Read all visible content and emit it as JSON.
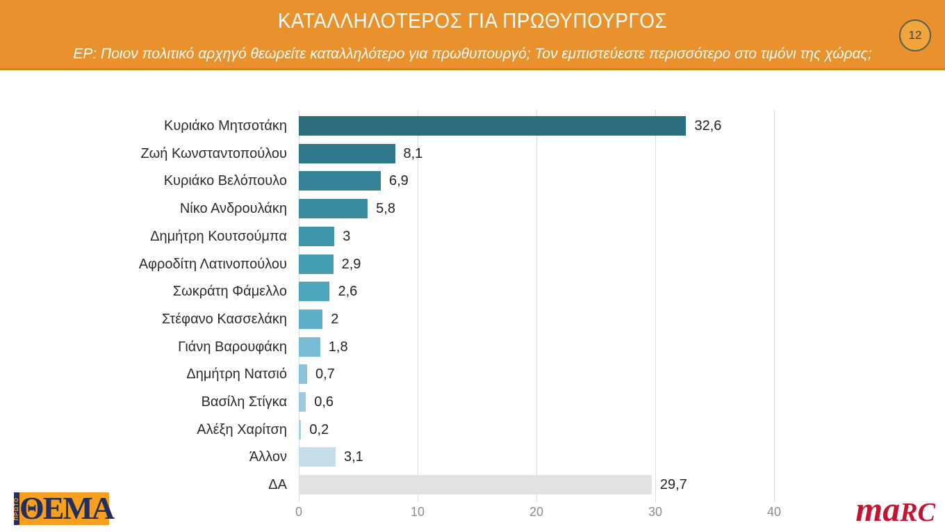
{
  "header": {
    "title": "ΚΑΤΑΛΛΗΛΟΤΕΡΟΣ ΓΙΑ ΠΡΩΘΥΠΟΥΡΓΟΣ",
    "subtitle": "ΕΡ: Ποιον πολιτικό αρχηγό θεωρείτε καταλληλότερο για πρωθυπουργό; Τον εμπιστεύεστε περισσότερο στο τιμόνι της χώρας;",
    "page_number": "12"
  },
  "colors": {
    "header_bg": "#E8912D",
    "header_border": "#D8821C",
    "badge_fill": "#F0A63C",
    "badge_border": "#55604E",
    "grid": "#DBDBDB",
    "tick_text": "#8C8C8C",
    "label_text": "#2B2B2B",
    "value_text": "#222222"
  },
  "chart_data": {
    "type": "bar",
    "orientation": "horizontal",
    "title": "ΚΑΤΑΛΛΗΛΟΤΕΡΟΣ ΓΙΑ ΠΡΩΘΥΠΟΥΡΓΟΣ",
    "categories": [
      "Κυριάκο Μητσοτάκη",
      "Ζωή Κωνσταντοπούλου",
      "Κυριάκο Βελόπουλο",
      "Νίκο Ανδρουλάκη",
      "Δημήτρη Κουτσούμπα",
      "Αφροδίτη Λατινοπούλου",
      "Σωκράτη Φάμελλο",
      "Στέφανο Κασσελάκη",
      "Γιάνη Βαρουφάκη",
      "Δημήτρη Νατσιό",
      "Βασίλη Στίγκα",
      "Αλέξη Χαρίτση",
      "Άλλον",
      "ΔΑ"
    ],
    "values": [
      32.6,
      8.1,
      6.9,
      5.8,
      3,
      2.9,
      2.6,
      2,
      1.8,
      0.7,
      0.6,
      0.2,
      3.1,
      29.7
    ],
    "value_labels": [
      "32,6",
      "8,1",
      "6,9",
      "5,8",
      "3",
      "2,9",
      "2,6",
      "2",
      "1,8",
      "0,7",
      "0,6",
      "0,2",
      "3,1",
      "29,7"
    ],
    "bar_colors": [
      "#2C6D7E",
      "#30778A",
      "#358195",
      "#3A8B9F",
      "#3F95A9",
      "#449EB2",
      "#4BA6BD",
      "#5DAEC9",
      "#79BBD4",
      "#8EC4DB",
      "#9BCADF",
      "#A9D1E4",
      "#C5DEEA",
      "#E2E2E2"
    ],
    "x_ticks": [
      0,
      10,
      20,
      30,
      40
    ],
    "xlim": [
      0,
      40
    ],
    "xlabel": "",
    "ylabel": "",
    "grid": true,
    "legend": false
  },
  "footer": {
    "left_logo_prefix": "ΠΡΩΤΟ",
    "left_logo_text": "ΘΕΜΑ",
    "right_logo_text_lower": "ma",
    "right_logo_text_upper": "RC"
  }
}
